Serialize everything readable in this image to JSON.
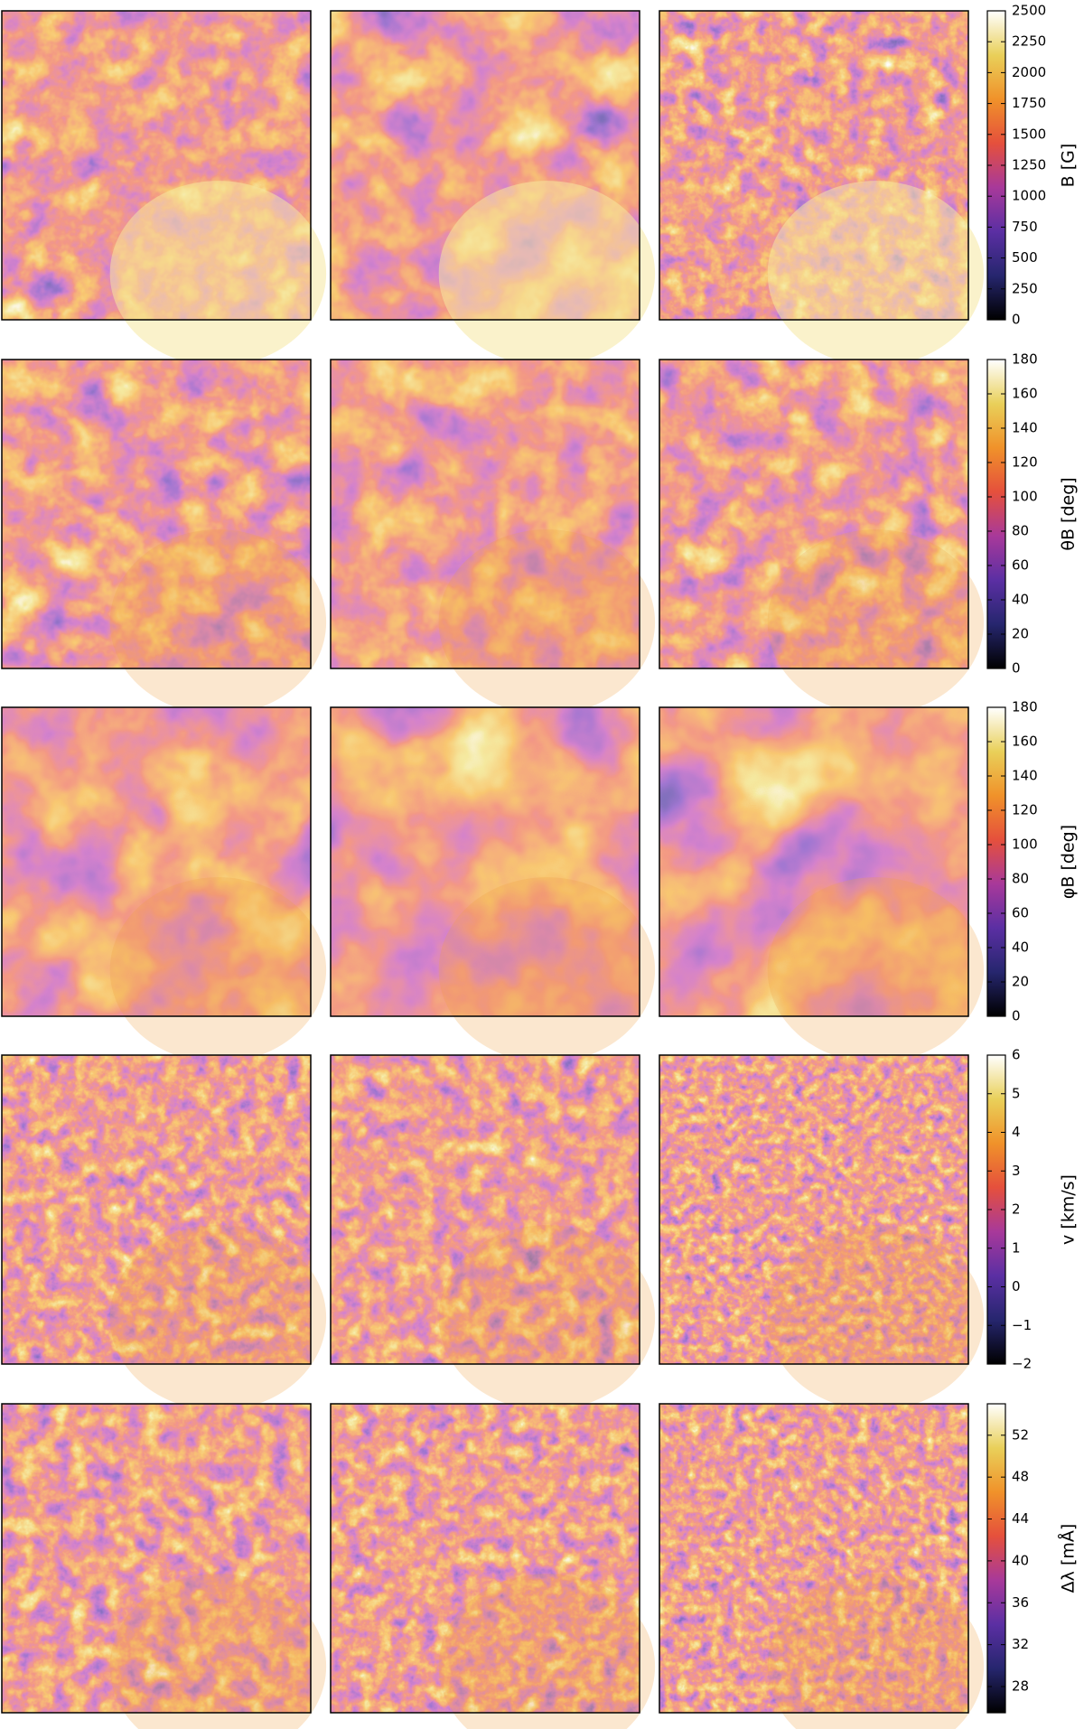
{
  "chart_data": [
    {
      "type": "heatmap",
      "colorbar_label": "B [G]",
      "zlim": [
        0,
        2500
      ],
      "zticks": [
        0,
        250,
        500,
        750,
        1000,
        1250,
        1500,
        1750,
        2000,
        2250,
        2500
      ],
      "colormap": [
        "#000000",
        "#26266e",
        "#5b2fa3",
        "#a8399a",
        "#e5503c",
        "#f0922a",
        "#e9d05a",
        "#ffffff"
      ]
    },
    {
      "type": "heatmap",
      "colorbar_label": "θB [deg]",
      "zlim": [
        0,
        180
      ],
      "zticks": [
        0,
        20,
        40,
        60,
        80,
        100,
        120,
        140,
        160,
        180
      ],
      "colormap": [
        "#000000",
        "#26266e",
        "#5b2fa3",
        "#a8399a",
        "#e5503c",
        "#f0922a",
        "#e9d05a",
        "#ffffff"
      ]
    },
    {
      "type": "heatmap",
      "colorbar_label": "φB [deg]",
      "zlim": [
        0,
        180
      ],
      "zticks": [
        0,
        20,
        40,
        60,
        80,
        100,
        120,
        140,
        160,
        180
      ],
      "colormap": [
        "#000000",
        "#26266e",
        "#5b2fa3",
        "#a8399a",
        "#e5503c",
        "#f0922a",
        "#e9d05a",
        "#ffffff"
      ]
    },
    {
      "type": "heatmap",
      "colorbar_label": "v [km/s]",
      "zlim": [
        -2,
        6
      ],
      "zticks": [
        {
          "value": -2,
          "label": "−2"
        },
        {
          "value": -1,
          "label": "−1"
        },
        0,
        1,
        2,
        3,
        4,
        5,
        6
      ],
      "colormap": [
        "#000000",
        "#26266e",
        "#5b2fa3",
        "#a8399a",
        "#e5503c",
        "#f0922a",
        "#e9d05a",
        "#ffffff"
      ]
    },
    {
      "type": "heatmap",
      "colorbar_label": "Δλ [mÅ]",
      "zlim": [
        25.5,
        55
      ],
      "zticks": [
        28,
        32,
        36,
        40,
        44,
        48,
        52
      ],
      "colormap": [
        "#000000",
        "#26266e",
        "#5b2fa3",
        "#a8399a",
        "#e5503c",
        "#f0922a",
        "#e9d05a",
        "#ffffff"
      ]
    }
  ]
}
